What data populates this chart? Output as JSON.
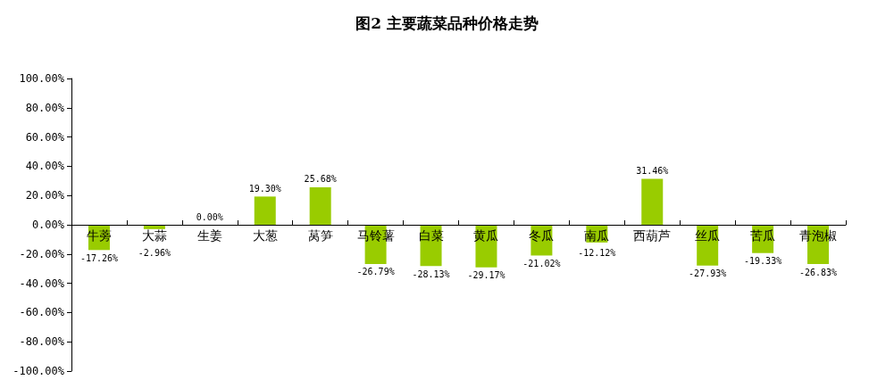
{
  "chart_data": {
    "type": "bar",
    "title": "图2 主要蔬菜品种价格走势",
    "categories": [
      "牛蒡",
      "大蒜",
      "生姜",
      "大葱",
      "莴笋",
      "马铃薯",
      "白菜",
      "黄瓜",
      "冬瓜",
      "南瓜",
      "西葫芦",
      "丝瓜",
      "苦瓜",
      "青泡椒"
    ],
    "values": [
      -17.26,
      -2.96,
      0.0,
      19.3,
      25.68,
      -26.79,
      -28.13,
      -29.17,
      -21.02,
      -12.12,
      31.46,
      -27.93,
      -19.33,
      -26.83
    ],
    "value_labels": [
      "-17.26%",
      "-2.96%",
      "0.00%",
      "19.30%",
      "25.68%",
      "-26.79%",
      "-28.13%",
      "-29.17%",
      "-21.02%",
      "-12.12%",
      "31.46%",
      "-27.93%",
      "-19.33%",
      "-26.83%"
    ],
    "color": "#99cc00",
    "ylim": [
      -100,
      100
    ],
    "yticks": [
      {
        "value": -100,
        "label": "-100.00%"
      },
      {
        "value": -80,
        "label": "-80.00%"
      },
      {
        "value": -60,
        "label": "-60.00%"
      },
      {
        "value": -40,
        "label": "-40.00%"
      },
      {
        "value": -20,
        "label": "-20.00%"
      },
      {
        "value": 0,
        "label": "0.00%"
      },
      {
        "value": 20,
        "label": "20.00%"
      },
      {
        "value": 40,
        "label": "40.00%"
      },
      {
        "value": 60,
        "label": "60.00%"
      },
      {
        "value": 80,
        "label": "80.00%"
      },
      {
        "value": 100,
        "label": "100.00%"
      }
    ],
    "grid": false
  }
}
